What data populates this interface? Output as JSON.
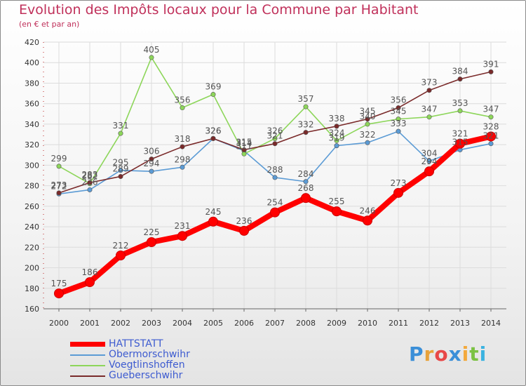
{
  "title": "Evolution des Impôts locaux pour la Commune par Habitant",
  "subtitle": "(en € et par an)",
  "logo": {
    "text": "Proxiti",
    "colors": [
      "#3b8fd8",
      "#e8a23a",
      "#e84848",
      "#3b8fd8",
      "#f3a93c",
      "#7cc244",
      "#3bb3e0"
    ]
  },
  "chart_data": {
    "type": "line",
    "x": [
      2000,
      2001,
      2002,
      2003,
      2004,
      2005,
      2006,
      2007,
      2008,
      2009,
      2010,
      2011,
      2012,
      2013,
      2014
    ],
    "ylim": [
      160,
      420
    ],
    "yticks": [
      160,
      180,
      200,
      220,
      240,
      260,
      280,
      300,
      320,
      340,
      360,
      380,
      400,
      420
    ],
    "grid": true,
    "legend": "bottom-left",
    "series": [
      {
        "name": "Obermorschwihr",
        "color": "#5b9bd5",
        "values": [
          272,
          276,
          295,
          294,
          298,
          326,
          314,
          288,
          284,
          319,
          322,
          333,
          304,
          315,
          321
        ]
      },
      {
        "name": "Voegtlinshoffen",
        "color": "#8dd65a",
        "values": [
          299,
          282,
          331,
          405,
          356,
          369,
          311,
          326,
          357,
          324,
          340,
          345,
          347,
          353,
          347
        ]
      },
      {
        "name": "Gueberschwihr",
        "color": "#7a2a2a",
        "values": [
          273,
          283,
          289,
          306,
          318,
          326,
          315,
          321,
          332,
          338,
          345,
          356,
          373,
          384,
          391
        ]
      },
      {
        "name": "HATTSTATT",
        "color": "#ff0000",
        "values": [
          175,
          186,
          212,
          225,
          231,
          245,
          236,
          254,
          268,
          255,
          246,
          273,
          294,
          321,
          328
        ]
      }
    ]
  }
}
